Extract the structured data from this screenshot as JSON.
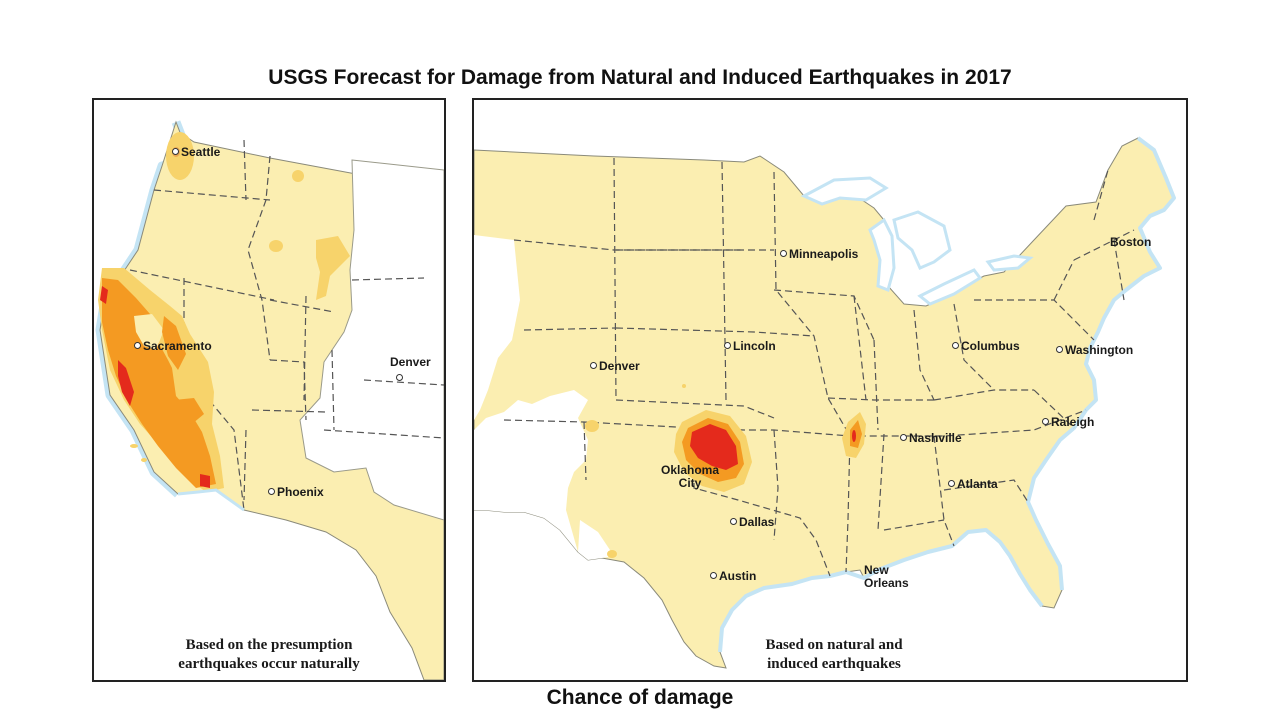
{
  "title": "USGS Forecast for Damage from Natural and Induced Earthquakes in 2017",
  "footer": "Chance of damage",
  "colors": {
    "land": "#fbeeb1",
    "low": "#f7d36b",
    "moderate": "#f49a22",
    "high": "#e42a1c",
    "water_halo": "#c4e4f4",
    "border": "#555555"
  },
  "left_map": {
    "caption_line1": "Based on the presumption",
    "caption_line2": "earthquakes occur naturally",
    "cities": {
      "seattle": "Seattle",
      "sacramento": "Sacramento",
      "denver": "Denver",
      "phoenix": "Phoenix"
    }
  },
  "right_map": {
    "caption_line1": "Based on natural and",
    "caption_line2": "induced earthquakes",
    "cities": {
      "minneapolis": "Minneapolis",
      "boston": "Boston",
      "lincoln": "Lincoln",
      "denver": "Denver",
      "columbus": "Columbus",
      "washington": "Washington",
      "nashville": "Nashville",
      "raleigh": "Raleigh",
      "oklahoma_line1": "Oklahoma",
      "oklahoma_line2": "City",
      "atlanta": "Atlanta",
      "dallas": "Dallas",
      "austin": "Austin",
      "neworleans_line1": "New",
      "neworleans_line2": "Orleans"
    }
  }
}
